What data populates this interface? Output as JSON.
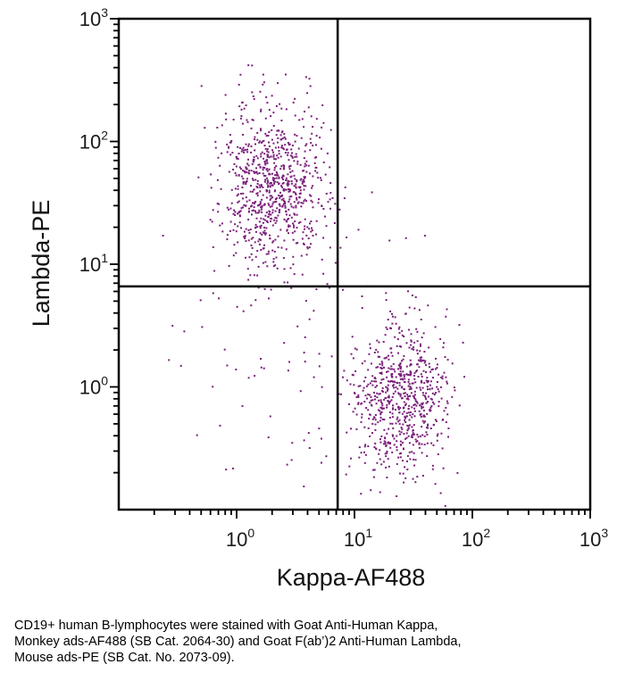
{
  "chart_data": {
    "type": "scatter",
    "title": "",
    "xlabel": "Kappa-AF488",
    "ylabel": "Lambda-PE",
    "xscale": "log",
    "yscale": "log",
    "xlim_decades": [
      -1,
      3
    ],
    "ylim_decades": [
      -1,
      3
    ],
    "x_tick_labels": [
      {
        "base": "10",
        "exp": "0"
      },
      {
        "base": "10",
        "exp": "1"
      },
      {
        "base": "10",
        "exp": "2"
      },
      {
        "base": "10",
        "exp": "3"
      }
    ],
    "y_tick_labels": [
      {
        "base": "10",
        "exp": "0"
      },
      {
        "base": "10",
        "exp": "1"
      },
      {
        "base": "10",
        "exp": "2"
      },
      {
        "base": "10",
        "exp": "3"
      }
    ],
    "quadrant_gate": {
      "x": 7.2,
      "y": 6.6
    },
    "grid": false,
    "legend": "none",
    "point_color": "#7a1f7a",
    "populations": [
      {
        "center_x": 2.0,
        "center_y": 45,
        "spread_x_decades": 0.22,
        "spread_y_decades": 0.32,
        "count": 820
      },
      {
        "center_x": 25,
        "center_y": 0.8,
        "spread_x_decades": 0.2,
        "spread_y_decades": 0.3,
        "count": 700
      },
      {
        "center_x": 3.5,
        "center_y": 2.5,
        "spread_x_decades": 0.55,
        "spread_y_decades": 0.6,
        "count": 110
      }
    ]
  },
  "caption": {
    "lines": [
      "CD19+ human B-lymphocytes were stained with Goat Anti-Human Kappa,",
      "Monkey ads-AF488 (SB Cat. 2064-30) and Goat F(ab’)2 Anti-Human Lambda,",
      "Mouse ads-PE (SB Cat. No. 2073-09)."
    ]
  }
}
